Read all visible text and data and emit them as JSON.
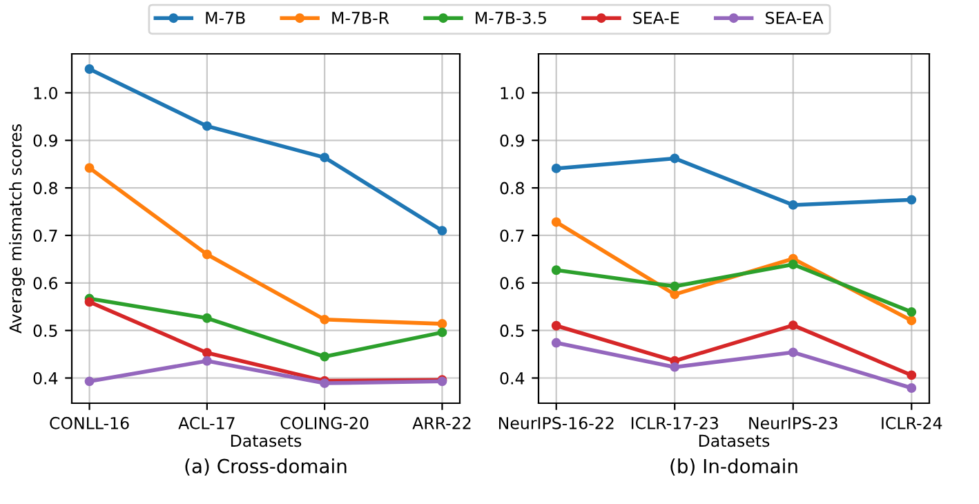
{
  "chart_data": [
    {
      "type": "line",
      "title": "(a) Cross-domain",
      "xlabel": "Datasets",
      "ylabel": "Average mismatch scores",
      "categories": [
        "CONLL-16",
        "ACL-17",
        "COLING-20",
        "ARR-22"
      ],
      "ylim": [
        0.347,
        1.082
      ],
      "yticks": [
        0.4,
        0.5,
        0.6,
        0.7,
        0.8,
        0.9,
        {
          "value": 1.0,
          "label": "1.0"
        }
      ],
      "grid": true,
      "marker": "circle",
      "legend": "top",
      "series": [
        {
          "name": "M-7B",
          "color": "#1f77b4",
          "values": [
            1.05,
            0.93,
            0.864,
            0.71
          ]
        },
        {
          "name": "M-7B-R",
          "color": "#ff7f0e",
          "values": [
            0.842,
            0.66,
            0.523,
            0.514
          ]
        },
        {
          "name": "M-7B-3.5",
          "color": "#2ca02c",
          "values": [
            0.567,
            0.526,
            0.445,
            0.496
          ]
        },
        {
          "name": "SEA-E",
          "color": "#d62728",
          "values": [
            0.56,
            0.453,
            0.394,
            0.396
          ]
        },
        {
          "name": "SEA-EA",
          "color": "#9467bd",
          "values": [
            0.393,
            0.436,
            0.389,
            0.393
          ]
        }
      ]
    },
    {
      "type": "line",
      "title": "(b) In-domain",
      "xlabel": "Datasets",
      "categories": [
        "NeurIPS-16-22",
        "ICLR-17-23",
        "NeurIPS-23",
        "ICLR-24"
      ],
      "ylim": [
        0.347,
        1.082
      ],
      "yticks": [
        0.4,
        0.5,
        0.6,
        0.7,
        0.8,
        0.9,
        {
          "value": 1.0,
          "label": "1.0"
        }
      ],
      "grid": true,
      "marker": "circle",
      "series": [
        {
          "color": "#1f77b4",
          "values": [
            0.841,
            0.862,
            0.764,
            0.775
          ]
        },
        {
          "color": "#ff7f0e",
          "values": [
            0.728,
            0.576,
            0.651,
            0.521
          ]
        },
        {
          "color": "#2ca02c",
          "values": [
            0.627,
            0.593,
            0.639,
            0.539
          ]
        },
        {
          "color": "#d62728",
          "values": [
            0.51,
            0.436,
            0.511,
            0.406
          ]
        },
        {
          "color": "#9467bd",
          "values": [
            0.474,
            0.423,
            0.454,
            0.379
          ]
        }
      ]
    }
  ]
}
